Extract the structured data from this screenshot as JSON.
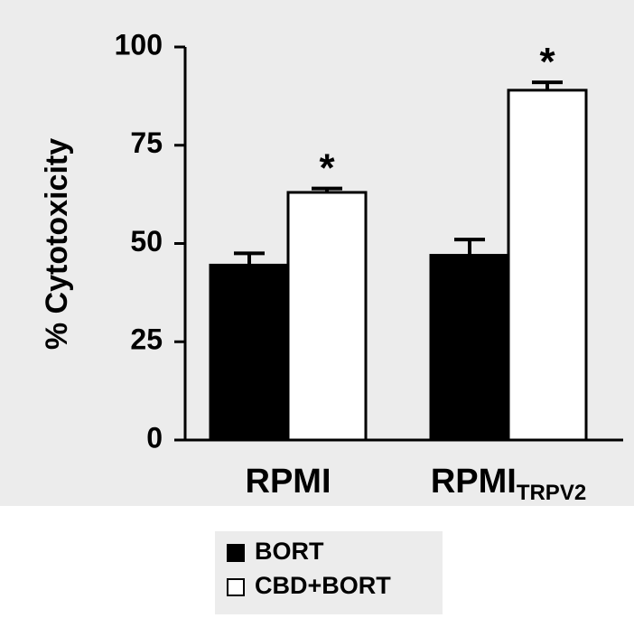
{
  "chart_data": {
    "type": "bar",
    "y_label": "% Cytotoxicity",
    "categories": [
      "RPMI",
      "RPMI"
    ],
    "category_subscripts": [
      null,
      "TRPV2"
    ],
    "series": [
      {
        "name": "BORT",
        "color": "#000000",
        "values": [
          44.5,
          47
        ],
        "errors": [
          3,
          4
        ]
      },
      {
        "name": "CBD+BORT",
        "color": "#ffffff",
        "values": [
          63,
          89
        ],
        "errors": [
          1,
          2
        ],
        "annotations": [
          "*",
          "*"
        ]
      }
    ],
    "ylim": [
      0,
      100
    ],
    "yticks": [
      0,
      25,
      50,
      75,
      100
    ]
  }
}
